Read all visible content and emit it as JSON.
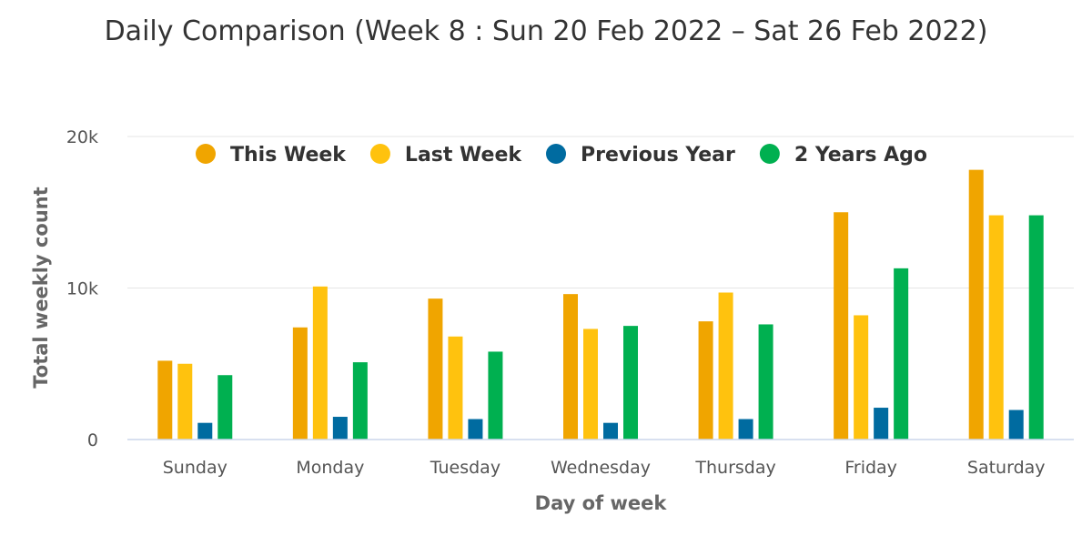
{
  "chart_data": {
    "type": "bar",
    "title": "Daily Comparison (Week 8 : Sun 20 Feb 2022 – Sat 26 Feb 2022)",
    "xlabel": "Day of week",
    "ylabel": "Total weekly count",
    "categories": [
      "Sunday",
      "Monday",
      "Tuesday",
      "Wednesday",
      "Thursday",
      "Friday",
      "Saturday"
    ],
    "ylim": [
      0,
      20000
    ],
    "yticks": [
      {
        "value": 0,
        "label": "0"
      },
      {
        "value": 10000,
        "label": "10k"
      },
      {
        "value": 20000,
        "label": "20k"
      }
    ],
    "grid": true,
    "legend_position": "top",
    "series": [
      {
        "name": "This Week",
        "color": "#f0a500",
        "values": [
          5200,
          7400,
          9300,
          9600,
          7800,
          15000,
          17800
        ]
      },
      {
        "name": "Last Week",
        "color": "#ffc20e",
        "values": [
          5000,
          10100,
          6800,
          7300,
          9700,
          8200,
          14800
        ]
      },
      {
        "name": "Previous Year",
        "color": "#006ba0",
        "values": [
          1100,
          1500,
          1350,
          1100,
          1350,
          2100,
          1950
        ]
      },
      {
        "name": "2 Years Ago",
        "color": "#00b050",
        "values": [
          4250,
          5100,
          5800,
          7500,
          7600,
          11300,
          14800
        ]
      }
    ]
  }
}
